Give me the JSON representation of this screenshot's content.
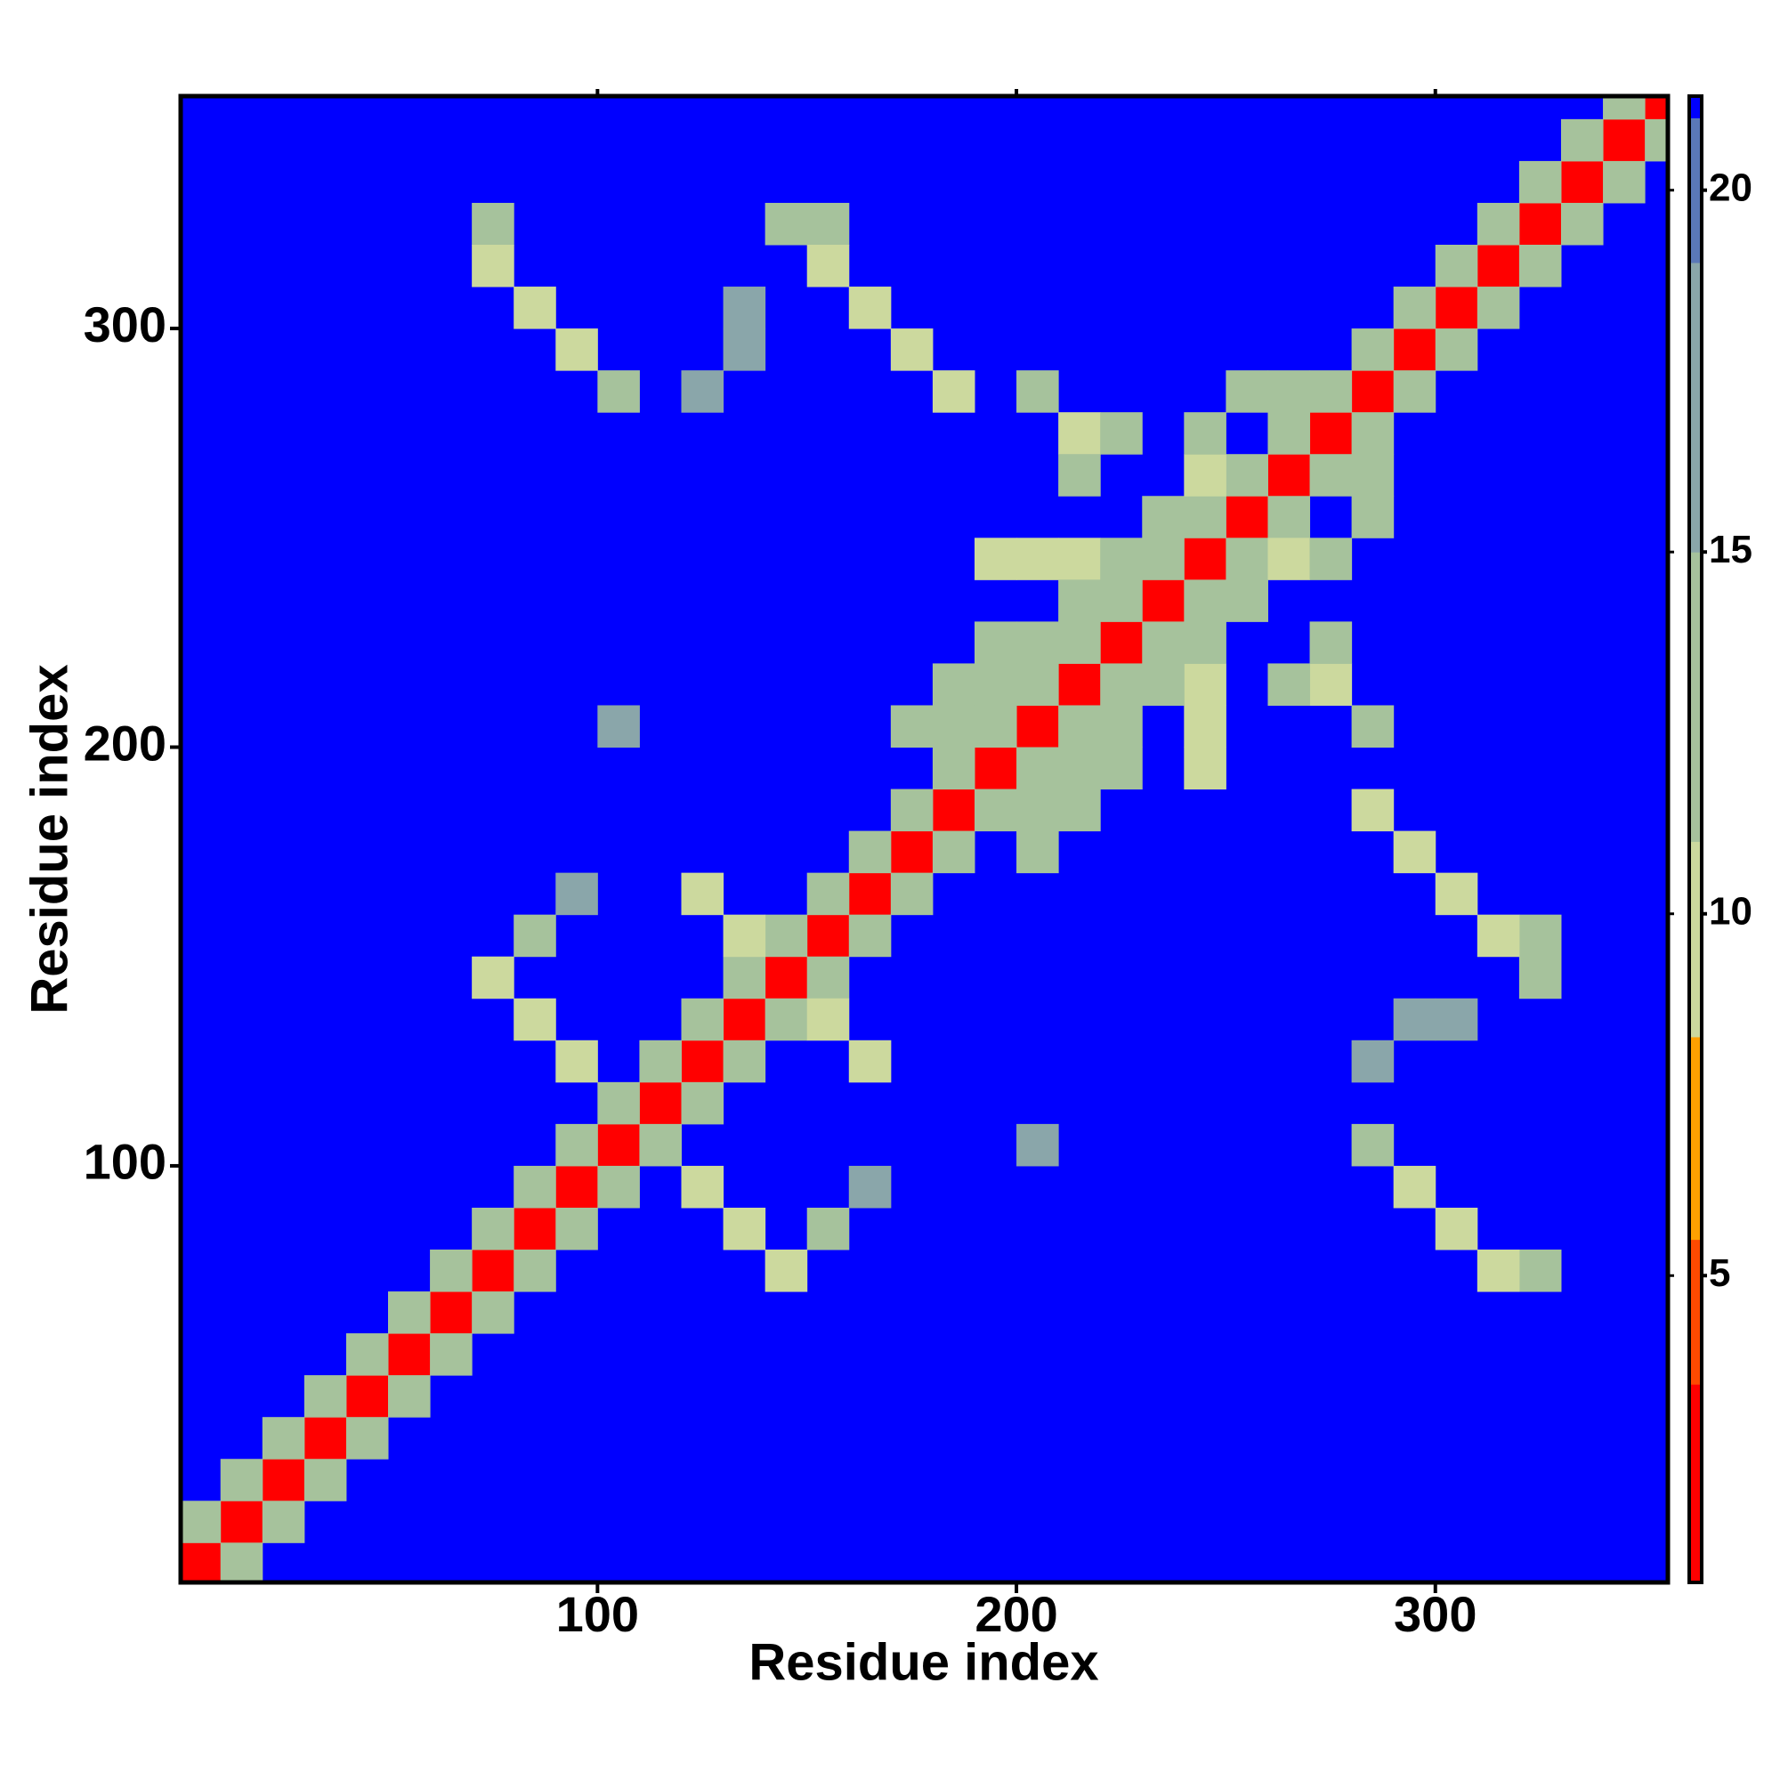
{
  "chart_data": {
    "type": "heatmap",
    "xlabel": "Residue index",
    "ylabel": "Residue index",
    "xlim": [
      0.5,
      355.5
    ],
    "ylim": [
      0.5,
      355.5
    ],
    "xticks": [
      100,
      200,
      300
    ],
    "yticks": [
      100,
      200,
      300
    ],
    "colorbar": {
      "zlim": [
        0.76,
        21.3
      ],
      "ticks": [
        5,
        10,
        15,
        20
      ],
      "breaks": [
        0.76,
        3.5,
        5.5,
        8.3,
        11,
        15,
        19,
        21,
        21.3
      ],
      "colors": [
        "#ff0000",
        "#ff4a00",
        "#ffa000",
        "#ccd99e",
        "#a6c29c",
        "#8aa6aa",
        "#5a78b8",
        "#0000ff"
      ]
    },
    "x": [
      5,
      15,
      25,
      35,
      45,
      55,
      65,
      75,
      85,
      95,
      105,
      115,
      125,
      135,
      145,
      155,
      165,
      175,
      185,
      195,
      205,
      215,
      225,
      235,
      245,
      255,
      265,
      275,
      285,
      295,
      305,
      315,
      325,
      335,
      345,
      355,
      5,
      15,
      25,
      35,
      45,
      55,
      65,
      75,
      85,
      95,
      105,
      115,
      125,
      135,
      145,
      155,
      165,
      175,
      185,
      195,
      205,
      215,
      225,
      235,
      245,
      255,
      265,
      275,
      285,
      295,
      305,
      315,
      325,
      335,
      345,
      15,
      25,
      35,
      45,
      55,
      65,
      75,
      85,
      95,
      105,
      115,
      125,
      135,
      145,
      155,
      165,
      175,
      185,
      195,
      205,
      215,
      225,
      235,
      245,
      255,
      265,
      275,
      285,
      295,
      305,
      315,
      325,
      335,
      345,
      355,
      75,
      75,
      85,
      95,
      105,
      145,
      155,
      155,
      165,
      175,
      185,
      125,
      135,
      135,
      215,
      205,
      225,
      215,
      195,
      205,
      215,
      225,
      245,
      245,
      255,
      235,
      265,
      185,
      175,
      185,
      195,
      205,
      195,
      215,
      75,
      85,
      95,
      85,
      95,
      125,
      135,
      105,
      325,
      315,
      305,
      295,
      285,
      325,
      325,
      315,
      305,
      295,
      285,
      285,
      295,
      305,
      275,
      285,
      275,
      265,
      245,
      245,
      245,
      245,
      265,
      275,
      285,
      255,
      285,
      205,
      205,
      215,
      215,
      225,
      225,
      235,
      145,
      135,
      125,
      155,
      165,
      165,
      155,
      205
    ],
    "y": [
      5,
      15,
      25,
      35,
      45,
      55,
      65,
      75,
      85,
      95,
      105,
      115,
      125,
      135,
      145,
      155,
      165,
      175,
      185,
      195,
      205,
      215,
      225,
      235,
      245,
      255,
      265,
      275,
      285,
      295,
      305,
      315,
      325,
      335,
      345,
      355,
      15,
      25,
      35,
      45,
      55,
      65,
      75,
      85,
      95,
      105,
      115,
      125,
      135,
      145,
      155,
      165,
      175,
      185,
      195,
      205,
      215,
      225,
      235,
      245,
      255,
      265,
      275,
      285,
      295,
      305,
      315,
      325,
      335,
      345,
      355,
      5,
      15,
      25,
      35,
      45,
      55,
      65,
      75,
      85,
      95,
      105,
      115,
      125,
      135,
      145,
      155,
      165,
      175,
      185,
      195,
      205,
      215,
      225,
      235,
      245,
      255,
      265,
      275,
      285,
      295,
      305,
      315,
      325,
      335,
      345,
      325,
      315,
      305,
      295,
      285,
      325,
      325,
      315,
      305,
      295,
      285,
      285,
      295,
      305,
      275,
      285,
      275,
      265,
      245,
      245,
      245,
      245,
      265,
      275,
      285,
      255,
      285,
      205,
      205,
      215,
      215,
      225,
      225,
      235,
      145,
      135,
      125,
      155,
      165,
      165,
      155,
      205,
      75,
      75,
      85,
      95,
      105,
      145,
      155,
      155,
      165,
      175,
      185,
      125,
      135,
      135,
      215,
      205,
      225,
      215,
      195,
      205,
      215,
      225,
      245,
      245,
      255,
      235,
      265,
      185,
      175,
      185,
      195,
      205,
      195,
      215,
      75,
      85,
      95,
      85,
      95,
      125,
      135,
      105
    ],
    "values": [
      3,
      3,
      3,
      3,
      3,
      3,
      3,
      3,
      3,
      3,
      3,
      3,
      3,
      3,
      3,
      3,
      3,
      3,
      3,
      3,
      3,
      3,
      3,
      3,
      3,
      3,
      3,
      3,
      3,
      3,
      3,
      3,
      3,
      3,
      3,
      3,
      13,
      13,
      13,
      13,
      13,
      13,
      13,
      13,
      13,
      13,
      13,
      13,
      13,
      13,
      13,
      13,
      13,
      13,
      13,
      13,
      13,
      13,
      13,
      13,
      13,
      13,
      13,
      13,
      13,
      13,
      13,
      13,
      13,
      13,
      13,
      13,
      13,
      13,
      13,
      13,
      13,
      13,
      13,
      13,
      13,
      13,
      13,
      13,
      13,
      13,
      13,
      13,
      13,
      13,
      13,
      13,
      13,
      13,
      13,
      13,
      13,
      13,
      13,
      13,
      13,
      13,
      13,
      13,
      13,
      13,
      12,
      9,
      9,
      10,
      14,
      13,
      12,
      9,
      9,
      9,
      11,
      16,
      16,
      16,
      9,
      13,
      13,
      14,
      11,
      10,
      11,
      12,
      10,
      12,
      14,
      13,
      13,
      12,
      14,
      13,
      12,
      12,
      13,
      13,
      9,
      9,
      10,
      15,
      16,
      11,
      9,
      17,
      12,
      9,
      9,
      10,
      14,
      13,
      12,
      9,
      9,
      9,
      11,
      16,
      16,
      16,
      9,
      13,
      13,
      14,
      11,
      10,
      11,
      12,
      10,
      12,
      14,
      13,
      13,
      12,
      14,
      13,
      12,
      12,
      13,
      13,
      9,
      9,
      10,
      15,
      16,
      11,
      9,
      17
    ]
  }
}
